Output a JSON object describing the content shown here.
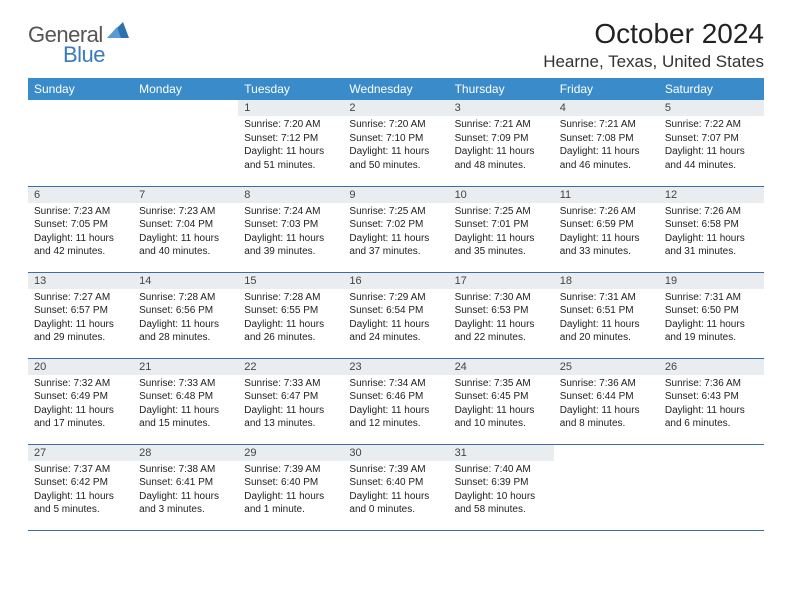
{
  "logo": {
    "text1": "General",
    "text2": "Blue"
  },
  "title": "October 2024",
  "location": "Hearne, Texas, United States",
  "styling": {
    "header_bg": "#3a8bc9",
    "header_fg": "#ffffff",
    "daynum_bg": "#e9edef",
    "daynum_fg": "#444444",
    "border_color": "#3a6ea5",
    "page_bg": "#ffffff",
    "title_fontsize": 28,
    "location_fontsize": 17,
    "cell_fontsize": 10
  },
  "weekdays": [
    "Sunday",
    "Monday",
    "Tuesday",
    "Wednesday",
    "Thursday",
    "Friday",
    "Saturday"
  ],
  "leading_blanks": 2,
  "days": [
    {
      "n": "1",
      "sr": "7:20 AM",
      "ss": "7:12 PM",
      "dl": "11 hours and 51 minutes."
    },
    {
      "n": "2",
      "sr": "7:20 AM",
      "ss": "7:10 PM",
      "dl": "11 hours and 50 minutes."
    },
    {
      "n": "3",
      "sr": "7:21 AM",
      "ss": "7:09 PM",
      "dl": "11 hours and 48 minutes."
    },
    {
      "n": "4",
      "sr": "7:21 AM",
      "ss": "7:08 PM",
      "dl": "11 hours and 46 minutes."
    },
    {
      "n": "5",
      "sr": "7:22 AM",
      "ss": "7:07 PM",
      "dl": "11 hours and 44 minutes."
    },
    {
      "n": "6",
      "sr": "7:23 AM",
      "ss": "7:05 PM",
      "dl": "11 hours and 42 minutes."
    },
    {
      "n": "7",
      "sr": "7:23 AM",
      "ss": "7:04 PM",
      "dl": "11 hours and 40 minutes."
    },
    {
      "n": "8",
      "sr": "7:24 AM",
      "ss": "7:03 PM",
      "dl": "11 hours and 39 minutes."
    },
    {
      "n": "9",
      "sr": "7:25 AM",
      "ss": "7:02 PM",
      "dl": "11 hours and 37 minutes."
    },
    {
      "n": "10",
      "sr": "7:25 AM",
      "ss": "7:01 PM",
      "dl": "11 hours and 35 minutes."
    },
    {
      "n": "11",
      "sr": "7:26 AM",
      "ss": "6:59 PM",
      "dl": "11 hours and 33 minutes."
    },
    {
      "n": "12",
      "sr": "7:26 AM",
      "ss": "6:58 PM",
      "dl": "11 hours and 31 minutes."
    },
    {
      "n": "13",
      "sr": "7:27 AM",
      "ss": "6:57 PM",
      "dl": "11 hours and 29 minutes."
    },
    {
      "n": "14",
      "sr": "7:28 AM",
      "ss": "6:56 PM",
      "dl": "11 hours and 28 minutes."
    },
    {
      "n": "15",
      "sr": "7:28 AM",
      "ss": "6:55 PM",
      "dl": "11 hours and 26 minutes."
    },
    {
      "n": "16",
      "sr": "7:29 AM",
      "ss": "6:54 PM",
      "dl": "11 hours and 24 minutes."
    },
    {
      "n": "17",
      "sr": "7:30 AM",
      "ss": "6:53 PM",
      "dl": "11 hours and 22 minutes."
    },
    {
      "n": "18",
      "sr": "7:31 AM",
      "ss": "6:51 PM",
      "dl": "11 hours and 20 minutes."
    },
    {
      "n": "19",
      "sr": "7:31 AM",
      "ss": "6:50 PM",
      "dl": "11 hours and 19 minutes."
    },
    {
      "n": "20",
      "sr": "7:32 AM",
      "ss": "6:49 PM",
      "dl": "11 hours and 17 minutes."
    },
    {
      "n": "21",
      "sr": "7:33 AM",
      "ss": "6:48 PM",
      "dl": "11 hours and 15 minutes."
    },
    {
      "n": "22",
      "sr": "7:33 AM",
      "ss": "6:47 PM",
      "dl": "11 hours and 13 minutes."
    },
    {
      "n": "23",
      "sr": "7:34 AM",
      "ss": "6:46 PM",
      "dl": "11 hours and 12 minutes."
    },
    {
      "n": "24",
      "sr": "7:35 AM",
      "ss": "6:45 PM",
      "dl": "11 hours and 10 minutes."
    },
    {
      "n": "25",
      "sr": "7:36 AM",
      "ss": "6:44 PM",
      "dl": "11 hours and 8 minutes."
    },
    {
      "n": "26",
      "sr": "7:36 AM",
      "ss": "6:43 PM",
      "dl": "11 hours and 6 minutes."
    },
    {
      "n": "27",
      "sr": "7:37 AM",
      "ss": "6:42 PM",
      "dl": "11 hours and 5 minutes."
    },
    {
      "n": "28",
      "sr": "7:38 AM",
      "ss": "6:41 PM",
      "dl": "11 hours and 3 minutes."
    },
    {
      "n": "29",
      "sr": "7:39 AM",
      "ss": "6:40 PM",
      "dl": "11 hours and 1 minute."
    },
    {
      "n": "30",
      "sr": "7:39 AM",
      "ss": "6:40 PM",
      "dl": "11 hours and 0 minutes."
    },
    {
      "n": "31",
      "sr": "7:40 AM",
      "ss": "6:39 PM",
      "dl": "10 hours and 58 minutes."
    }
  ],
  "labels": {
    "sunrise": "Sunrise:",
    "sunset": "Sunset:",
    "daylight": "Daylight:"
  }
}
